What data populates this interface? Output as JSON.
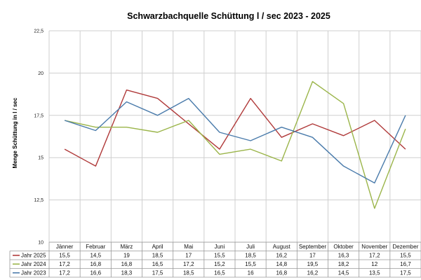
{
  "chart_data": {
    "type": "line",
    "title": "Schwarzbachquelle Schüttung l / sec 2023 - 2025",
    "ylabel": "Menge Schüttung in l / sec",
    "xlabel": "",
    "ylim": [
      10,
      22.5
    ],
    "yticks": [
      "10",
      "12,5",
      "15",
      "17,5",
      "20",
      "22,5"
    ],
    "grid": true,
    "legend": "data-table",
    "categories": [
      "Jänner",
      "Februar",
      "März",
      "April",
      "Mai",
      "Juni",
      "Juli",
      "August",
      "September",
      "Oktober",
      "November",
      "Dezember"
    ],
    "series": [
      {
        "name": "Jahr 2025",
        "color": "#b03a3a",
        "values": [
          15.5,
          14.5,
          19,
          18.5,
          17,
          15.5,
          18.5,
          16.2,
          17,
          16.3,
          17.2,
          15.5
        ],
        "labels": [
          "15,5",
          "14,5",
          "19",
          "18,5",
          "17",
          "15,5",
          "18,5",
          "16,2",
          "17",
          "16,3",
          "17,2",
          "15,5"
        ]
      },
      {
        "name": "Jahr 2024",
        "color": "#9bb54a",
        "values": [
          17.2,
          16.8,
          16.8,
          16.5,
          17.2,
          15.2,
          15.5,
          14.8,
          19.5,
          18.2,
          12,
          16.7
        ],
        "labels": [
          "17,2",
          "16,8",
          "16,8",
          "16,5",
          "17,2",
          "15,2",
          "15,5",
          "14,8",
          "19,5",
          "18,2",
          "12",
          "16,7"
        ]
      },
      {
        "name": "Jahr 2023",
        "color": "#4a7bab",
        "values": [
          17.2,
          16.6,
          18.3,
          17.5,
          18.5,
          16.5,
          16,
          16.8,
          16.2,
          14.5,
          13.5,
          17.5
        ],
        "labels": [
          "17,2",
          "16,6",
          "18,3",
          "17,5",
          "18,5",
          "16,5",
          "16",
          "16,8",
          "16,2",
          "14,5",
          "13,5",
          "17,5"
        ]
      }
    ]
  }
}
